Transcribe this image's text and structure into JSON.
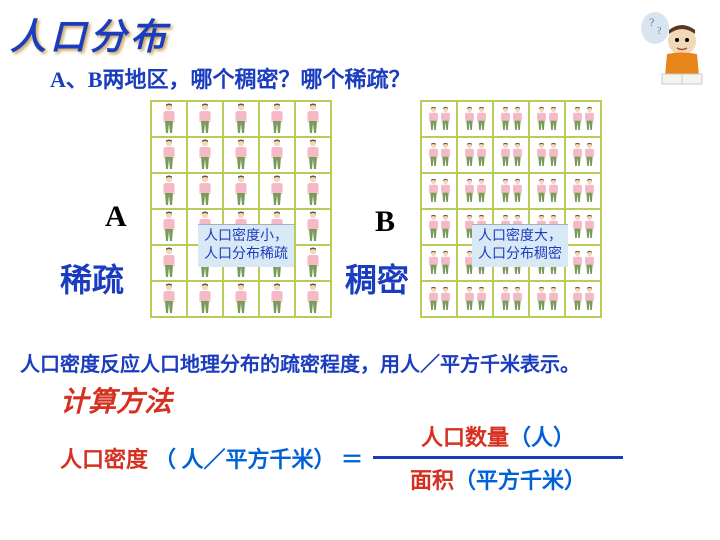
{
  "title": "人口分布",
  "question": "A、B两地区，哪个稠密？哪个稀疏？",
  "regionA": {
    "letter": "A",
    "desc": "稀疏",
    "tag_line1": "人口密度小，",
    "tag_line2": "人口分布稀疏",
    "cols": 5,
    "rows": 6
  },
  "regionB": {
    "letter": "B",
    "desc": "稠密",
    "tag_line1": "人口密度大，",
    "tag_line2": "人口分布稠密",
    "cols": 5,
    "rows": 6
  },
  "explain": "人口密度反应人口地理分布的疏密程度，用人／平方千米表示。",
  "method_title": "计算方法",
  "formula": {
    "lhs_red": "人口密度",
    "lhs_blue": "（ 人／平方千米） ＝",
    "num_red": "人口数量",
    "num_blue": "（人）",
    "den_red": "面积",
    "den_blue": "（平方千米）"
  },
  "colors": {
    "blue_text": "#1a3dbf",
    "red_text": "#d63020",
    "grid_border": "#b8cc5a",
    "person_shirt": "#f5b8c8",
    "person_pants": "#7a9a5a",
    "person_skin": "#f0d8b8",
    "tag_bg": "#d8e8f4"
  }
}
